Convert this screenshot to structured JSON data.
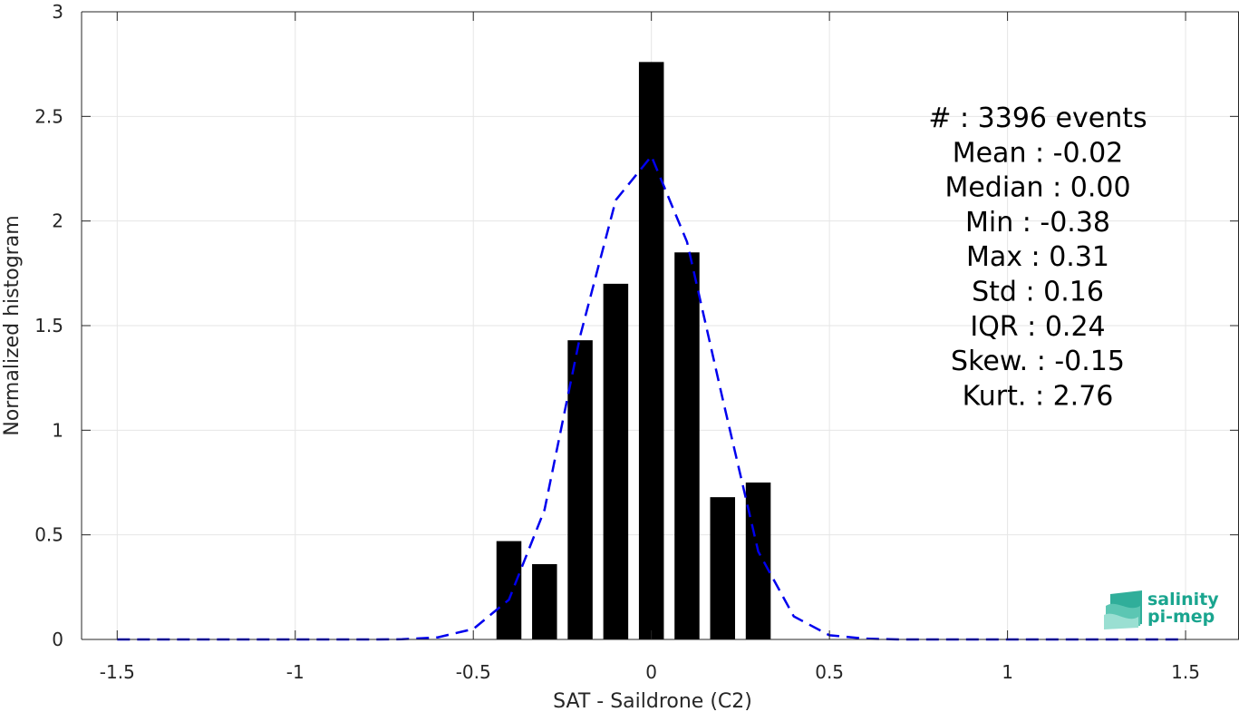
{
  "chart_data": {
    "type": "bar",
    "xlabel": "SAT - Saildrone (C2)",
    "ylabel": "Normalized histogram",
    "xlim": [
      -1.6,
      1.65
    ],
    "ylim": [
      0,
      3
    ],
    "grid": true,
    "x_ticks": [
      -1.5,
      -1,
      -0.5,
      0,
      0.5,
      1,
      1.5
    ],
    "x_tick_labels": [
      "-1.5",
      "-1",
      "-0.5",
      "0",
      "0.5",
      "1",
      "1.5"
    ],
    "y_ticks": [
      0,
      0.5,
      1,
      1.5,
      2,
      2.5,
      3
    ],
    "y_tick_labels": [
      "0",
      "0.5",
      "1",
      "1.5",
      "2",
      "2.5",
      "3"
    ],
    "bar_width": 0.07,
    "bar_color": "#000000",
    "bars": {
      "x": [
        -0.4,
        -0.3,
        -0.2,
        -0.1,
        0,
        0.1,
        0.2,
        0.3
      ],
      "values": [
        0.47,
        0.36,
        1.43,
        1.7,
        2.76,
        1.85,
        0.68,
        0.75
      ]
    },
    "fit_curve": {
      "style": "dashed",
      "color": "#0000ee",
      "x": [
        -1.5,
        -1.4,
        -1.3,
        -1.2,
        -1.1,
        -1.0,
        -0.9,
        -0.8,
        -0.7,
        -0.6,
        -0.5,
        -0.4,
        -0.3,
        -0.2,
        -0.1,
        0.0,
        0.1,
        0.2,
        0.3,
        0.4,
        0.5,
        0.6,
        0.7,
        0.8,
        0.9,
        1.0,
        1.1,
        1.2,
        1.3,
        1.4,
        1.5
      ],
      "y": [
        0,
        0,
        0,
        0,
        0,
        0,
        0,
        0,
        0.001,
        0.01,
        0.05,
        0.19,
        0.62,
        1.45,
        2.1,
        2.31,
        1.9,
        1.15,
        0.42,
        0.11,
        0.02,
        0.004,
        0,
        0,
        0,
        0,
        0,
        0,
        0,
        0,
        0
      ]
    },
    "stats_lines": [
      "#  : 3396 events",
      "Mean : -0.02",
      "Median : 0.00",
      "Min : -0.38",
      "Max : 0.31",
      "Std : 0.16",
      "IQR : 0.24",
      "Skew. : -0.15",
      "Kurt. : 2.76"
    ]
  },
  "logo": {
    "line1": "salinity",
    "line2": "pi-mep",
    "color": "#1aa58f"
  }
}
